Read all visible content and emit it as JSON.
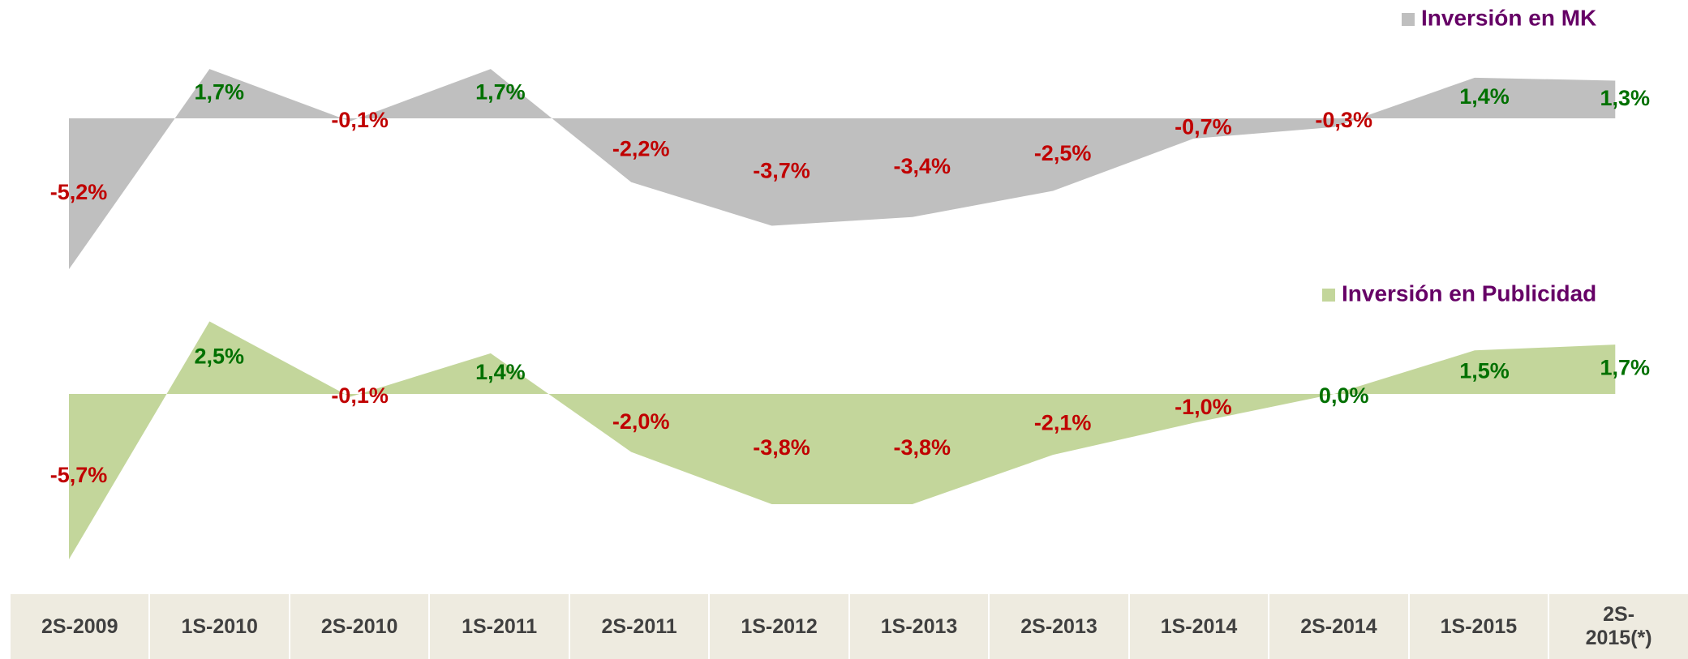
{
  "chart_data": {
    "type": "area",
    "categories": [
      "2S-2009",
      "1S-2010",
      "2S-2010",
      "1S-2011",
      "2S-2011",
      "1S-2012",
      "1S-2013",
      "2S-2013",
      "1S-2014",
      "2S-2014",
      "1S-2015",
      "2S-2015(*)"
    ],
    "positive_color": "#007000",
    "negative_color": "#c00000",
    "legend_color": "#660066",
    "series": [
      {
        "name": "Inversión en MK",
        "color": "#bfbfbf",
        "values": [
          -5.2,
          1.7,
          -0.1,
          1.7,
          -2.2,
          -3.7,
          -3.4,
          -2.5,
          -0.7,
          -0.3,
          1.4,
          1.3
        ],
        "value_labels": [
          "-5,2%",
          "1,7%",
          "-0,1%",
          "1,7%",
          "-2,2%",
          "-3,7%",
          "-3,4%",
          "-2,5%",
          "-0,7%",
          "-0,3%",
          "1,4%",
          "1,3%"
        ]
      },
      {
        "name": "Inversión en Publicidad",
        "color": "#c3d69b",
        "values": [
          -5.7,
          2.5,
          -0.1,
          1.4,
          -2.0,
          -3.8,
          -3.8,
          -2.1,
          -1.0,
          0.0,
          1.5,
          1.7
        ],
        "value_labels": [
          "-5,7%",
          "2,5%",
          "-0,1%",
          "1,4%",
          "-2,0%",
          "-3,8%",
          "-3,8%",
          "-2,1%",
          "-1,0%",
          "0,0%",
          "1,5%",
          "1,7%"
        ]
      }
    ]
  }
}
